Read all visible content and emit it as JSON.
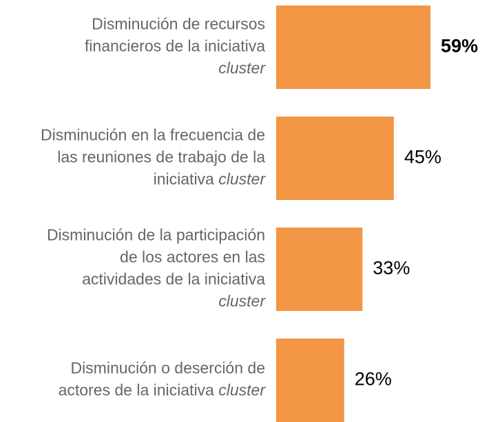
{
  "chart_data": {
    "type": "hbar",
    "categories": [
      [
        "Disminución de recursos",
        "financieros de la iniciativa",
        "cluster"
      ],
      [
        "Disminución en la frecuencia de",
        "las reuniones de trabajo de la",
        "iniciativa cluster"
      ],
      [
        "Disminución de la participación",
        "de los actores en las",
        "actividades de la iniciativa",
        "cluster"
      ],
      [
        "Disminución o deserción de",
        "actores de la iniciativa cluster"
      ]
    ],
    "values": [
      59,
      45,
      33,
      26
    ],
    "value_labels": [
      "59%",
      "45%",
      "33%",
      "26%"
    ],
    "color": "#f39645",
    "italic_last_word": true,
    "bold_label_index": 0
  }
}
